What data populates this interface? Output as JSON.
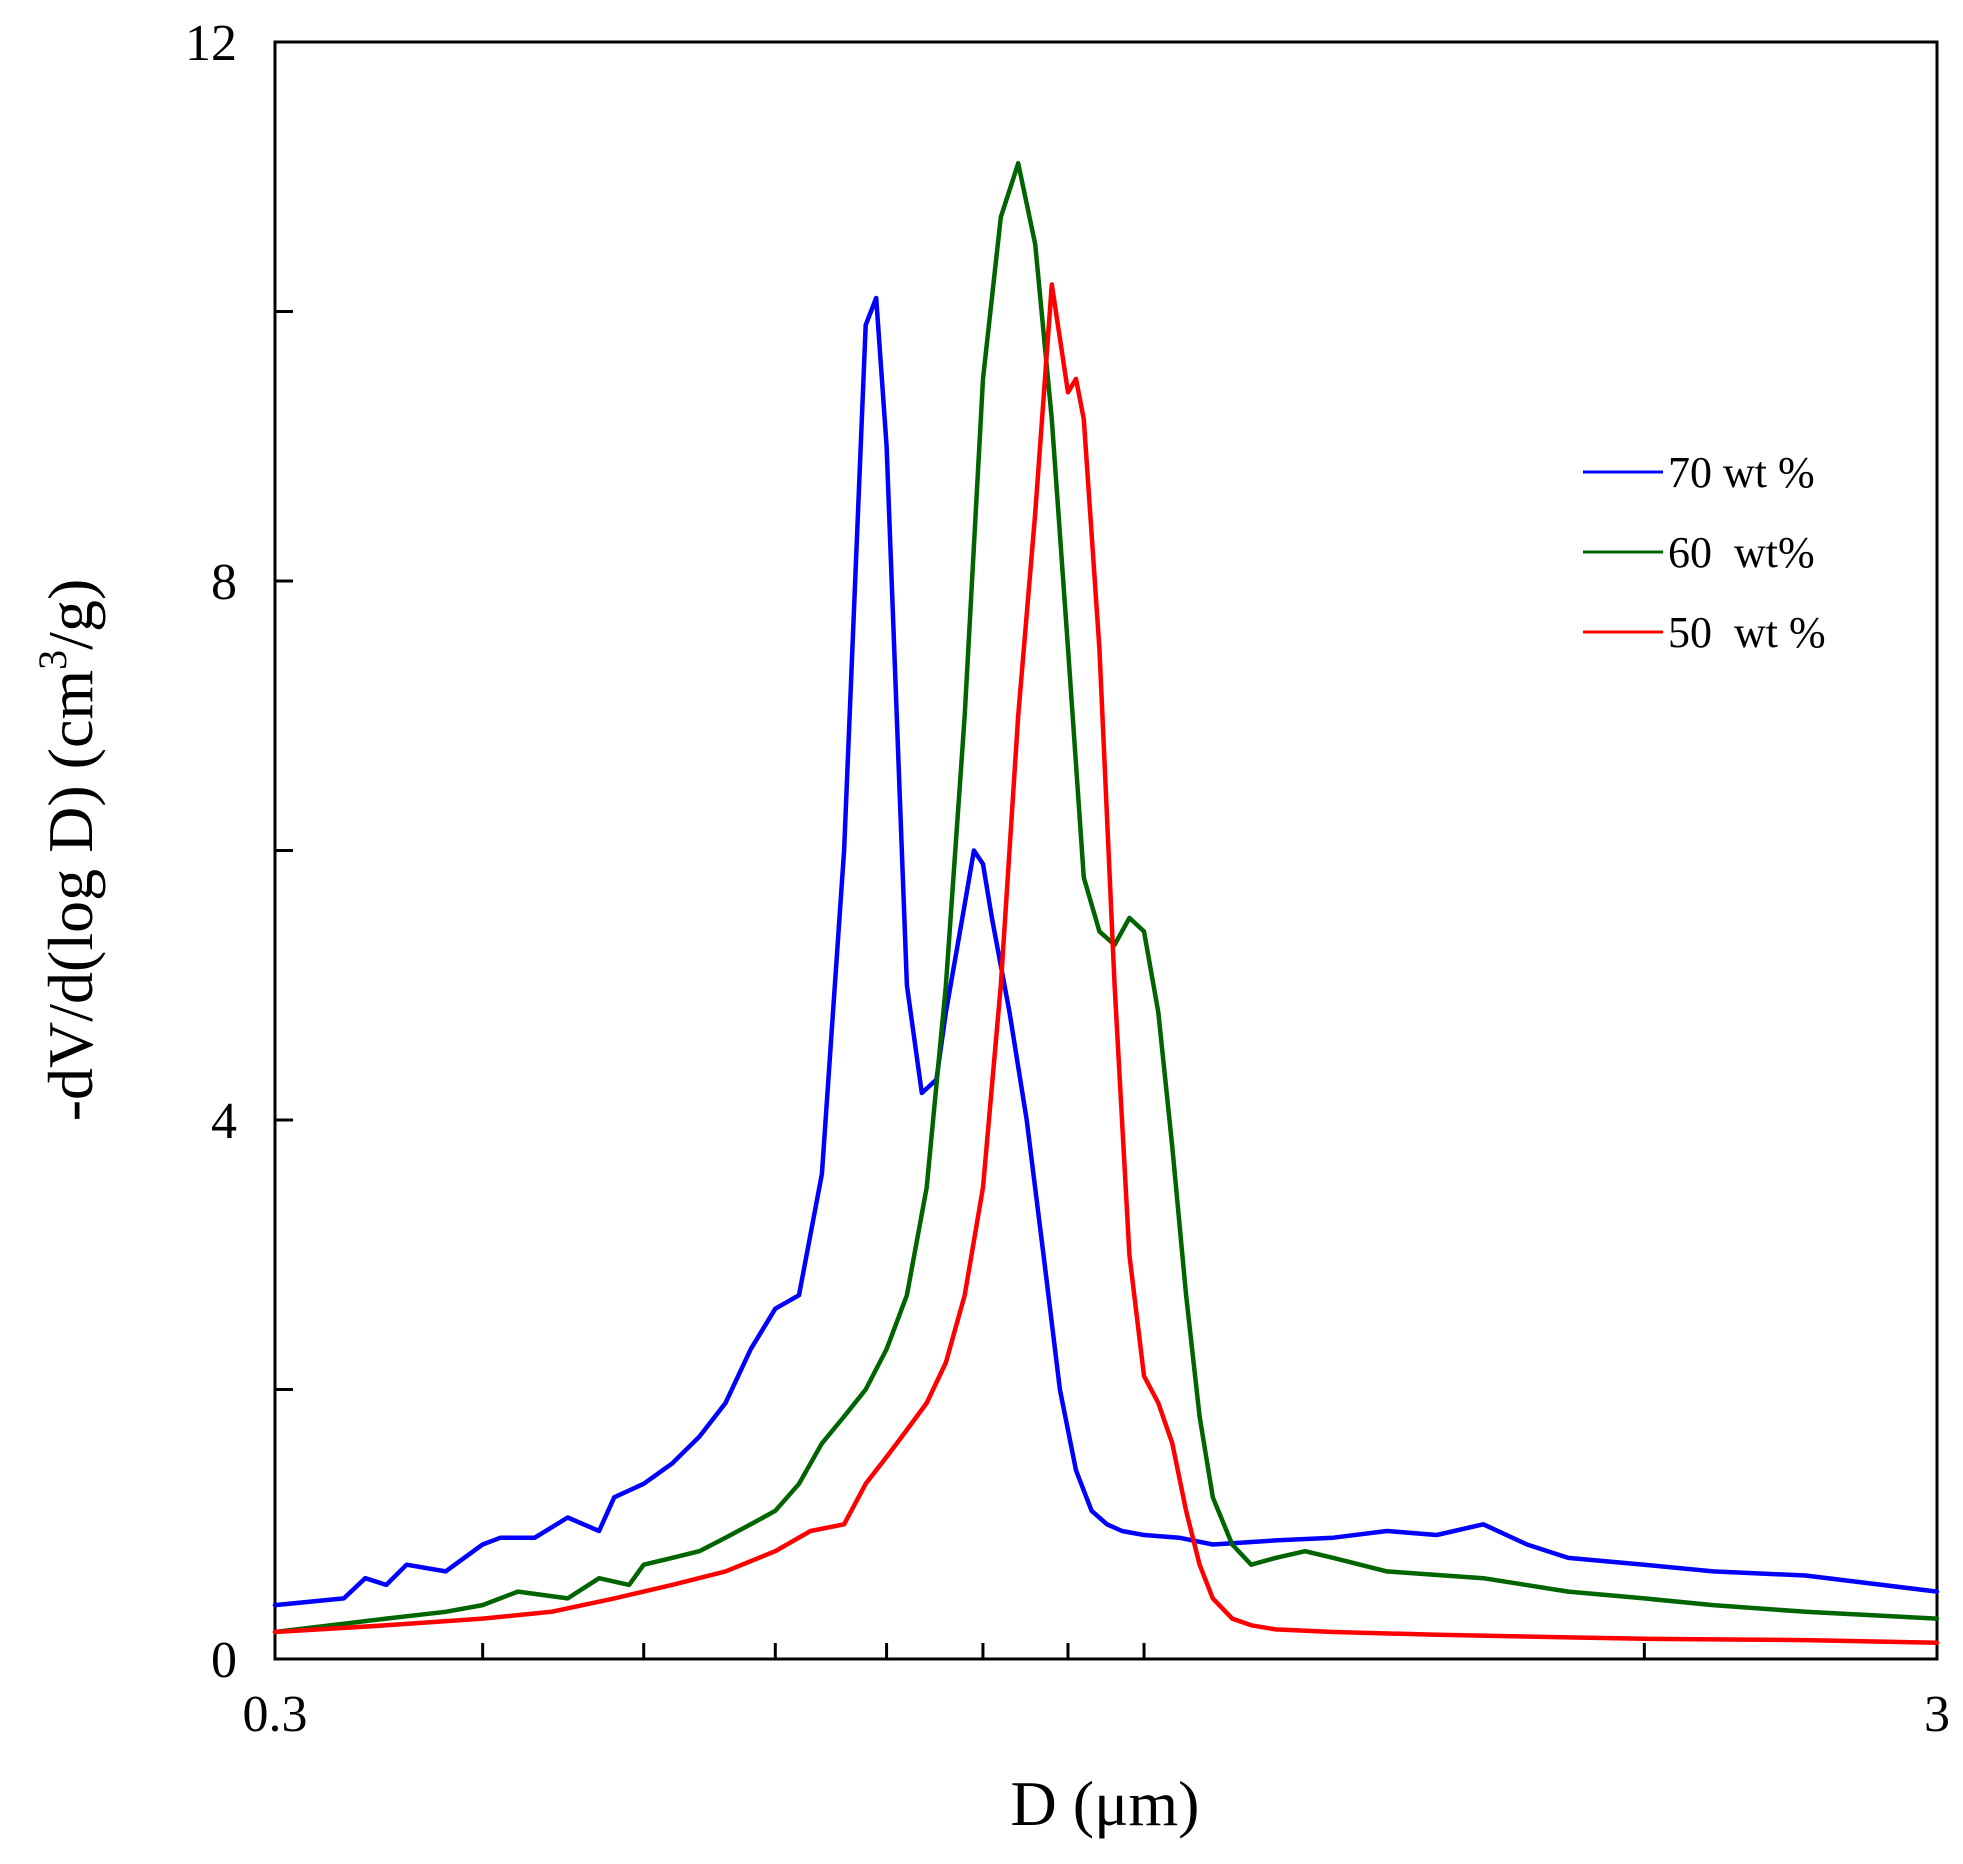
{
  "chart_data": {
    "type": "line",
    "title": "",
    "xlabel": "D (μm)",
    "ylabel": "-dV/d(log D) (cm³/g)",
    "ylabel_parts": {
      "before": "-dV/d(log D) (cm",
      "sup": "3",
      "after": "/g)"
    },
    "x_scale": "log",
    "xlim": [
      0.3,
      3
    ],
    "ylim": [
      0,
      12
    ],
    "x_ticks": [
      0.3,
      0.4,
      0.5,
      0.6,
      0.7,
      0.8,
      0.9,
      1,
      2,
      3
    ],
    "x_tick_labels": [
      {
        "value": 0.3,
        "label": "0.3"
      },
      {
        "value": 3,
        "label": "3"
      }
    ],
    "y_ticks": [
      0,
      2,
      4,
      6,
      8,
      10,
      12
    ],
    "y_tick_labels": [
      {
        "value": 0,
        "label": "0"
      },
      {
        "value": 4,
        "label": "4"
      },
      {
        "value": 8,
        "label": "8"
      },
      {
        "value": 12,
        "label": "12"
      }
    ],
    "grid": false,
    "legend_position": "top-right",
    "series": [
      {
        "name": "70 wt %",
        "color": "#0000ff",
        "x": [
          0.3,
          0.33,
          0.34,
          0.35,
          0.36,
          0.38,
          0.4,
          0.41,
          0.43,
          0.45,
          0.47,
          0.48,
          0.5,
          0.52,
          0.54,
          0.56,
          0.58,
          0.6,
          0.62,
          0.64,
          0.66,
          0.68,
          0.69,
          0.7,
          0.72,
          0.735,
          0.75,
          0.76,
          0.78,
          0.79,
          0.8,
          0.81,
          0.83,
          0.85,
          0.87,
          0.89,
          0.91,
          0.93,
          0.95,
          0.97,
          1.0,
          1.05,
          1.1,
          1.2,
          1.3,
          1.4,
          1.5,
          1.6,
          1.7,
          1.8,
          2.0,
          2.2,
          2.5,
          3.0
        ],
        "y": [
          0.4,
          0.45,
          0.6,
          0.55,
          0.7,
          0.65,
          0.85,
          0.9,
          0.9,
          1.05,
          0.95,
          1.2,
          1.3,
          1.45,
          1.65,
          1.9,
          2.3,
          2.6,
          2.7,
          3.6,
          6.0,
          9.9,
          10.1,
          9.0,
          5.0,
          4.2,
          4.3,
          4.8,
          5.6,
          6.0,
          5.9,
          5.5,
          4.8,
          4.0,
          3.0,
          2.0,
          1.4,
          1.1,
          1.0,
          0.95,
          0.92,
          0.9,
          0.85,
          0.88,
          0.9,
          0.95,
          0.92,
          1.0,
          0.85,
          0.75,
          0.7,
          0.65,
          0.62,
          0.5
        ]
      },
      {
        "name": "60  wt%",
        "color": "#006400",
        "x": [
          0.3,
          0.35,
          0.38,
          0.4,
          0.42,
          0.45,
          0.47,
          0.49,
          0.5,
          0.52,
          0.54,
          0.56,
          0.58,
          0.6,
          0.62,
          0.64,
          0.66,
          0.68,
          0.7,
          0.72,
          0.74,
          0.76,
          0.78,
          0.8,
          0.82,
          0.84,
          0.86,
          0.88,
          0.9,
          0.92,
          0.94,
          0.96,
          0.98,
          1.0,
          1.02,
          1.04,
          1.06,
          1.08,
          1.1,
          1.13,
          1.16,
          1.2,
          1.25,
          1.3,
          1.4,
          1.6,
          1.8,
          2.0,
          2.2,
          2.5,
          3.0
        ],
        "y": [
          0.2,
          0.3,
          0.35,
          0.4,
          0.5,
          0.45,
          0.6,
          0.55,
          0.7,
          0.75,
          0.8,
          0.9,
          1.0,
          1.1,
          1.3,
          1.6,
          1.8,
          2.0,
          2.3,
          2.7,
          3.5,
          5.0,
          7.0,
          9.5,
          10.7,
          11.1,
          10.5,
          9.2,
          7.5,
          5.8,
          5.4,
          5.3,
          5.5,
          5.4,
          4.8,
          3.8,
          2.7,
          1.8,
          1.2,
          0.85,
          0.7,
          0.75,
          0.8,
          0.75,
          0.65,
          0.6,
          0.5,
          0.45,
          0.4,
          0.35,
          0.3
        ]
      },
      {
        "name": "50  wt %",
        "color": "#ff0000",
        "x": [
          0.3,
          0.35,
          0.4,
          0.44,
          0.48,
          0.52,
          0.56,
          0.6,
          0.63,
          0.66,
          0.68,
          0.7,
          0.72,
          0.74,
          0.76,
          0.78,
          0.8,
          0.82,
          0.84,
          0.86,
          0.88,
          0.9,
          0.91,
          0.92,
          0.94,
          0.96,
          0.98,
          1.0,
          1.02,
          1.04,
          1.06,
          1.08,
          1.1,
          1.13,
          1.16,
          1.2,
          1.3,
          1.5,
          1.8,
          2.0,
          2.5,
          3.0
        ],
        "y": [
          0.2,
          0.25,
          0.3,
          0.35,
          0.45,
          0.55,
          0.65,
          0.8,
          0.95,
          1.0,
          1.3,
          1.5,
          1.7,
          1.9,
          2.2,
          2.7,
          3.5,
          5.0,
          7.0,
          8.5,
          10.2,
          9.4,
          9.5,
          9.2,
          7.5,
          5.0,
          3.0,
          2.1,
          1.9,
          1.6,
          1.1,
          0.7,
          0.45,
          0.3,
          0.25,
          0.22,
          0.2,
          0.18,
          0.16,
          0.15,
          0.14,
          0.12
        ]
      }
    ]
  }
}
